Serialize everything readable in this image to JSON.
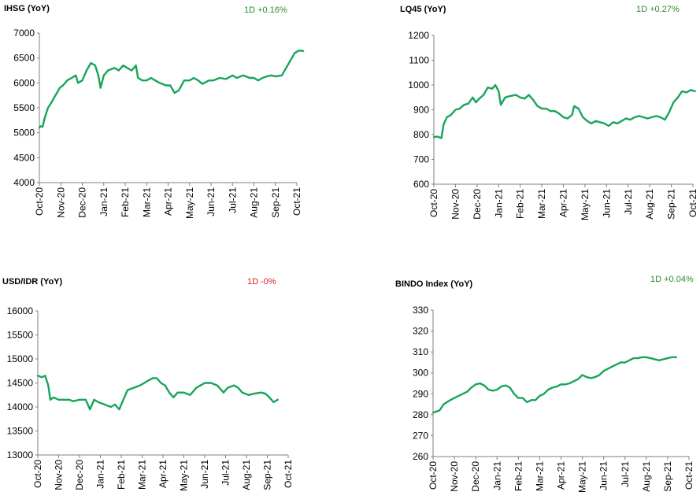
{
  "colors": {
    "line": "#17A558",
    "positive": "#2E8B2E",
    "negative": "#E02020",
    "axis": "#7F7F7F"
  },
  "months": [
    "Oct-20",
    "Nov-20",
    "Dec-20",
    "Jan-21",
    "Feb-21",
    "Mar-21",
    "Apr-21",
    "May-21",
    "Jun-21",
    "Jul-21",
    "Aug-21",
    "Sep-21",
    "Oct-21"
  ],
  "chart_data": [
    {
      "type": "line",
      "title": "IHSG (YoY)",
      "change": "1D +0.16%",
      "change_sign": "positive",
      "xlabel": "",
      "ylabel": "",
      "ylim": [
        4000,
        7000
      ],
      "yticks": [
        "7000",
        "6500",
        "6000",
        "5500",
        "5000",
        "4500",
        "4000"
      ],
      "grid": false,
      "series": [
        {
          "values": [
            [
              0,
              5100
            ],
            [
              0.05,
              5130
            ],
            [
              0.15,
              5120
            ],
            [
              0.25,
              5300
            ],
            [
              0.4,
              5500
            ],
            [
              0.55,
              5600
            ],
            [
              0.75,
              5750
            ],
            [
              0.95,
              5900
            ],
            [
              1.1,
              5950
            ],
            [
              1.3,
              6050
            ],
            [
              1.5,
              6100
            ],
            [
              1.7,
              6150
            ],
            [
              1.8,
              6000
            ],
            [
              2.0,
              6050
            ],
            [
              2.2,
              6250
            ],
            [
              2.4,
              6400
            ],
            [
              2.6,
              6350
            ],
            [
              2.75,
              6150
            ],
            [
              2.85,
              5900
            ],
            [
              3.0,
              6150
            ],
            [
              3.2,
              6250
            ],
            [
              3.5,
              6300
            ],
            [
              3.7,
              6250
            ],
            [
              3.9,
              6350
            ],
            [
              4.1,
              6300
            ],
            [
              4.3,
              6250
            ],
            [
              4.5,
              6350
            ],
            [
              4.6,
              6100
            ],
            [
              4.8,
              6050
            ],
            [
              5.0,
              6050
            ],
            [
              5.2,
              6100
            ],
            [
              5.4,
              6050
            ],
            [
              5.6,
              6000
            ],
            [
              5.9,
              5950
            ],
            [
              6.1,
              5950
            ],
            [
              6.3,
              5800
            ],
            [
              6.5,
              5850
            ],
            [
              6.75,
              6050
            ],
            [
              7.0,
              6050
            ],
            [
              7.2,
              6100
            ],
            [
              7.4,
              6050
            ],
            [
              7.6,
              5980
            ],
            [
              7.9,
              6050
            ],
            [
              8.1,
              6050
            ],
            [
              8.4,
              6100
            ],
            [
              8.7,
              6080
            ],
            [
              9.0,
              6150
            ],
            [
              9.2,
              6100
            ],
            [
              9.5,
              6150
            ],
            [
              9.8,
              6100
            ],
            [
              10.0,
              6100
            ],
            [
              10.2,
              6050
            ],
            [
              10.4,
              6100
            ],
            [
              10.6,
              6130
            ],
            [
              10.8,
              6150
            ],
            [
              11.0,
              6130
            ],
            [
              11.3,
              6150
            ],
            [
              11.5,
              6300
            ],
            [
              11.7,
              6450
            ],
            [
              11.9,
              6600
            ],
            [
              12.1,
              6650
            ],
            [
              12.3,
              6640
            ]
          ]
        }
      ]
    },
    {
      "type": "line",
      "title": "LQ45 (YoY)",
      "change": "1D +0.27%",
      "change_sign": "positive",
      "xlabel": "",
      "ylabel": "",
      "ylim": [
        600,
        1200
      ],
      "yticks": [
        "1200",
        "1100",
        "1000",
        "900",
        "800",
        "700",
        "600"
      ],
      "grid": false,
      "series": [
        {
          "values": [
            [
              0,
              790
            ],
            [
              0.15,
              792
            ],
            [
              0.35,
              786
            ],
            [
              0.45,
              840
            ],
            [
              0.6,
              870
            ],
            [
              0.8,
              880
            ],
            [
              1.0,
              900
            ],
            [
              1.2,
              905
            ],
            [
              1.4,
              920
            ],
            [
              1.6,
              925
            ],
            [
              1.8,
              950
            ],
            [
              1.95,
              930
            ],
            [
              2.1,
              945
            ],
            [
              2.3,
              960
            ],
            [
              2.5,
              990
            ],
            [
              2.7,
              985
            ],
            [
              2.85,
              1000
            ],
            [
              3.0,
              975
            ],
            [
              3.1,
              920
            ],
            [
              3.3,
              950
            ],
            [
              3.5,
              955
            ],
            [
              3.8,
              960
            ],
            [
              4.0,
              950
            ],
            [
              4.2,
              945
            ],
            [
              4.4,
              960
            ],
            [
              4.6,
              940
            ],
            [
              4.8,
              915
            ],
            [
              5.0,
              905
            ],
            [
              5.2,
              905
            ],
            [
              5.4,
              895
            ],
            [
              5.6,
              895
            ],
            [
              5.8,
              885
            ],
            [
              6.0,
              870
            ],
            [
              6.2,
              865
            ],
            [
              6.4,
              880
            ],
            [
              6.5,
              915
            ],
            [
              6.7,
              905
            ],
            [
              6.9,
              870
            ],
            [
              7.1,
              855
            ],
            [
              7.3,
              845
            ],
            [
              7.5,
              855
            ],
            [
              7.7,
              850
            ],
            [
              7.9,
              845
            ],
            [
              8.1,
              835
            ],
            [
              8.3,
              850
            ],
            [
              8.5,
              845
            ],
            [
              8.7,
              855
            ],
            [
              8.9,
              865
            ],
            [
              9.1,
              860
            ],
            [
              9.3,
              870
            ],
            [
              9.5,
              875
            ],
            [
              9.7,
              870
            ],
            [
              9.9,
              865
            ],
            [
              10.1,
              870
            ],
            [
              10.3,
              875
            ],
            [
              10.5,
              870
            ],
            [
              10.7,
              860
            ],
            [
              10.9,
              890
            ],
            [
              11.1,
              930
            ],
            [
              11.3,
              950
            ],
            [
              11.5,
              975
            ],
            [
              11.7,
              970
            ],
            [
              11.9,
              980
            ],
            [
              12.1,
              975
            ]
          ]
        }
      ]
    },
    {
      "type": "line",
      "title": "USD/IDR  (YoY)",
      "change": "1D -0%",
      "change_sign": "negative",
      "xlabel": "",
      "ylabel": "",
      "ylim": [
        13000,
        16000
      ],
      "yticks": [
        "16000",
        "15500",
        "15000",
        "14500",
        "14000",
        "13500",
        "13000"
      ],
      "grid": false,
      "series": [
        {
          "values": [
            [
              0,
              14650
            ],
            [
              0.2,
              14620
            ],
            [
              0.35,
              14650
            ],
            [
              0.5,
              14450
            ],
            [
              0.6,
              14150
            ],
            [
              0.75,
              14200
            ],
            [
              1.0,
              14150
            ],
            [
              1.2,
              14150
            ],
            [
              1.5,
              14150
            ],
            [
              1.7,
              14120
            ],
            [
              2.0,
              14150
            ],
            [
              2.3,
              14150
            ],
            [
              2.5,
              13950
            ],
            [
              2.7,
              14150
            ],
            [
              2.9,
              14100
            ],
            [
              3.2,
              14050
            ],
            [
              3.5,
              14000
            ],
            [
              3.7,
              14050
            ],
            [
              3.9,
              13950
            ],
            [
              4.1,
              14150
            ],
            [
              4.3,
              14350
            ],
            [
              4.6,
              14400
            ],
            [
              4.9,
              14450
            ],
            [
              5.1,
              14500
            ],
            [
              5.3,
              14550
            ],
            [
              5.5,
              14600
            ],
            [
              5.7,
              14600
            ],
            [
              5.9,
              14500
            ],
            [
              6.1,
              14450
            ],
            [
              6.3,
              14300
            ],
            [
              6.5,
              14200
            ],
            [
              6.7,
              14300
            ],
            [
              7.0,
              14300
            ],
            [
              7.3,
              14250
            ],
            [
              7.6,
              14400
            ],
            [
              7.8,
              14450
            ],
            [
              8.0,
              14500
            ],
            [
              8.3,
              14500
            ],
            [
              8.6,
              14450
            ],
            [
              8.9,
              14300
            ],
            [
              9.1,
              14400
            ],
            [
              9.4,
              14450
            ],
            [
              9.6,
              14400
            ],
            [
              9.8,
              14300
            ],
            [
              10.1,
              14250
            ],
            [
              10.4,
              14280
            ],
            [
              10.7,
              14300
            ],
            [
              10.9,
              14280
            ],
            [
              11.1,
              14200
            ],
            [
              11.3,
              14100
            ],
            [
              11.5,
              14150
            ]
          ]
        }
      ]
    },
    {
      "type": "line",
      "title": "BINDO Index (YoY)",
      "change": "1D +0.04%",
      "change_sign": "positive",
      "xlabel": "",
      "ylabel": "",
      "ylim": [
        260,
        330
      ],
      "yticks": [
        "330",
        "320",
        "310",
        "300",
        "290",
        "280",
        "270",
        "260"
      ],
      "grid": false,
      "series": [
        {
          "values": [
            [
              0,
              281
            ],
            [
              0.3,
              282
            ],
            [
              0.5,
              285
            ],
            [
              0.8,
              287
            ],
            [
              1.0,
              288
            ],
            [
              1.3,
              289.5
            ],
            [
              1.6,
              291
            ],
            [
              1.8,
              293
            ],
            [
              2.0,
              294.5
            ],
            [
              2.2,
              295
            ],
            [
              2.4,
              294
            ],
            [
              2.6,
              292
            ],
            [
              2.8,
              291.5
            ],
            [
              3.0,
              292
            ],
            [
              3.2,
              293.5
            ],
            [
              3.4,
              294
            ],
            [
              3.6,
              293
            ],
            [
              3.8,
              290
            ],
            [
              4.0,
              288
            ],
            [
              4.2,
              288
            ],
            [
              4.4,
              286
            ],
            [
              4.6,
              287
            ],
            [
              4.8,
              287
            ],
            [
              5.0,
              289
            ],
            [
              5.2,
              290
            ],
            [
              5.4,
              292
            ],
            [
              5.6,
              293
            ],
            [
              5.8,
              293.5
            ],
            [
              6.0,
              294.5
            ],
            [
              6.2,
              294.5
            ],
            [
              6.4,
              295
            ],
            [
              6.6,
              296
            ],
            [
              6.8,
              297
            ],
            [
              7.0,
              299
            ],
            [
              7.2,
              298
            ],
            [
              7.4,
              297.5
            ],
            [
              7.6,
              298
            ],
            [
              7.8,
              299
            ],
            [
              8.0,
              301
            ],
            [
              8.2,
              302
            ],
            [
              8.4,
              303
            ],
            [
              8.6,
              304
            ],
            [
              8.8,
              305
            ],
            [
              9.0,
              305
            ],
            [
              9.2,
              306
            ],
            [
              9.4,
              307
            ],
            [
              9.6,
              307
            ],
            [
              9.8,
              307.5
            ],
            [
              10.0,
              307.5
            ],
            [
              10.2,
              307
            ],
            [
              10.4,
              306.5
            ],
            [
              10.6,
              306
            ],
            [
              10.8,
              306.5
            ],
            [
              11.0,
              307
            ],
            [
              11.2,
              307.5
            ],
            [
              11.4,
              307.5
            ]
          ]
        }
      ]
    }
  ]
}
